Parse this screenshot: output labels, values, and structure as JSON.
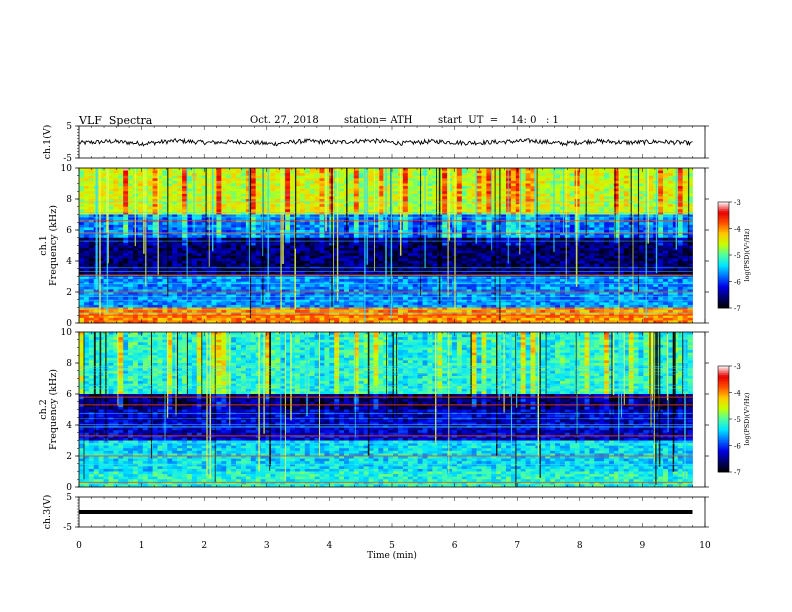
{
  "header": {
    "title": "VLF  Spectra",
    "date": "Oct. 27, 2018",
    "station": "station= ATH",
    "start": "start  UT  =    14: 0   : 1"
  },
  "colors": {
    "waveform": "#000000",
    "background": "#ffffff",
    "colormap": [
      "#000000",
      "#00007f",
      "#0000ff",
      "#0080ff",
      "#00ffff",
      "#80ff80",
      "#ffff00",
      "#ff8000",
      "#ff0000",
      "#ffffff"
    ]
  },
  "chart_data": [
    {
      "type": "line",
      "panel": "ch1_waveform",
      "ylabel": "ch.1(V)",
      "yticks": [
        "5",
        "-5"
      ],
      "ylim": [
        -5,
        5
      ],
      "xlim": [
        0,
        10
      ],
      "series": [
        {
          "values": [
            -0.3,
            0.2,
            -0.5,
            0.4,
            -0.2,
            0.1,
            -0.6,
            0.3,
            -0.1,
            0.5,
            -0.4,
            0.2,
            -0.3,
            0.0,
            0.4,
            -0.5,
            0.3,
            -0.2,
            0.1,
            -0.4
          ]
        }
      ]
    },
    {
      "type": "heatmap",
      "panel": "ch1_spectrogram",
      "ylabel": "ch.1\nFrequency (kHz)",
      "yticks": [
        "0",
        "2",
        "4",
        "6",
        "8",
        "10"
      ],
      "ylim": [
        0,
        10
      ],
      "xlim": [
        0,
        10
      ],
      "colorbar": {
        "label": "log(PSD)(V²/Hz)",
        "ticks": [
          "-3",
          "-4",
          "-5",
          "-6",
          "-7"
        ],
        "range": [
          -7,
          -3
        ]
      },
      "dominant_bands_khz": [
        0.5,
        2.0,
        3.1,
        5.8,
        6.6
      ],
      "description_levels": {
        "0-1": -4,
        "1-3": -5.7,
        "3-5.5": -6.6,
        "5.5-7": -5.8,
        "7-10": -4.6
      }
    },
    {
      "type": "heatmap",
      "panel": "ch2_spectrogram",
      "ylabel": "ch.2\nFrequency (kHz)",
      "yticks": [
        "0",
        "2",
        "4",
        "6",
        "8",
        "10"
      ],
      "ylim": [
        0,
        10
      ],
      "xlim": [
        0,
        10
      ],
      "colorbar": {
        "label": "log(PSD)(V²/Hz)",
        "ticks": [
          "-3",
          "-4",
          "-5",
          "-6",
          "-7"
        ],
        "range": [
          -7,
          -3
        ]
      },
      "dominant_bands_khz": [
        0.3,
        2.0,
        3.3,
        5.3,
        5.8
      ],
      "description_levels": {
        "0-1": -5.2,
        "1-3": -5.4,
        "3-5": -6.3,
        "5-6": -6.6,
        "6-10": -5.2
      }
    },
    {
      "type": "line",
      "panel": "ch3_waveform",
      "ylabel": "ch.3(V)",
      "yticks": [
        "5",
        "-5"
      ],
      "ylim": [
        -5,
        5
      ],
      "xlim": [
        0,
        10
      ],
      "series": [
        {
          "values": [
            0,
            0,
            0,
            0,
            0,
            0,
            0,
            0,
            0,
            0
          ]
        }
      ]
    }
  ],
  "xaxis": {
    "label": "Time  (min)",
    "ticks": [
      "0",
      "1",
      "2",
      "3",
      "4",
      "5",
      "6",
      "7",
      "8",
      "9",
      "10"
    ],
    "data_end_min": 9.8
  }
}
